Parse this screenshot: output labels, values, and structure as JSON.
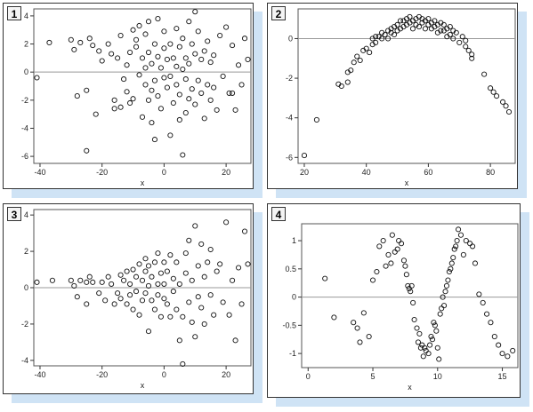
{
  "panels": [
    {
      "label": "1"
    },
    {
      "label": "2"
    },
    {
      "label": "3"
    },
    {
      "label": "4"
    }
  ],
  "chart_data": [
    {
      "type": "scatter",
      "panel": "1",
      "xlabel": "x",
      "ylabel": "",
      "xlim": [
        -42,
        28
      ],
      "ylim": [
        -6.5,
        4.5
      ],
      "xticks": [
        -40,
        -20,
        0,
        20
      ],
      "yticks": [
        -6,
        -4,
        -2,
        0,
        2,
        4
      ],
      "grid": false,
      "reference_line": 0,
      "points": [
        [
          -41,
          -0.4
        ],
        [
          -37,
          2.1
        ],
        [
          -30,
          2.3
        ],
        [
          -29,
          1.6
        ],
        [
          -28,
          -1.7
        ],
        [
          -27,
          2.1
        ],
        [
          -25,
          -5.6
        ],
        [
          -25,
          -1.3
        ],
        [
          -24,
          2.4
        ],
        [
          -23,
          1.9
        ],
        [
          -22,
          -3.0
        ],
        [
          -21,
          1.5
        ],
        [
          -20,
          0.8
        ],
        [
          -18,
          2.0
        ],
        [
          -17,
          1.3
        ],
        [
          -16,
          -2.0
        ],
        [
          -16,
          -2.6
        ],
        [
          -15,
          1.0
        ],
        [
          -14,
          -2.5
        ],
        [
          -14,
          2.6
        ],
        [
          -13,
          -0.5
        ],
        [
          -12,
          0.5
        ],
        [
          -12,
          -1.4
        ],
        [
          -11,
          -2.2
        ],
        [
          -11,
          1.4
        ],
        [
          -10,
          3.0
        ],
        [
          -10,
          -1.9
        ],
        [
          -9,
          2.3
        ],
        [
          -9,
          1.8
        ],
        [
          -8,
          3.3
        ],
        [
          -8,
          -0.2
        ],
        [
          -7,
          -3.2
        ],
        [
          -7,
          1.0
        ],
        [
          -6,
          2.7
        ],
        [
          -6,
          0.3
        ],
        [
          -6,
          -0.9
        ],
        [
          -5,
          3.6
        ],
        [
          -5,
          1.4
        ],
        [
          -5,
          -2.0
        ],
        [
          -4,
          -3.6
        ],
        [
          -4,
          0.6
        ],
        [
          -4,
          -1.3
        ],
        [
          -3,
          2.0
        ],
        [
          -3,
          -0.6
        ],
        [
          -3,
          -4.8
        ],
        [
          -2,
          1.1
        ],
        [
          -2,
          -1.7
        ],
        [
          -2,
          3.8
        ],
        [
          -1,
          0.3
        ],
        [
          -1,
          -2.6
        ],
        [
          0,
          1.7
        ],
        [
          0,
          -0.4
        ],
        [
          0,
          2.9
        ],
        [
          1,
          -1.1
        ],
        [
          1,
          0.9
        ],
        [
          2,
          -4.5
        ],
        [
          2,
          2.0
        ],
        [
          2,
          -0.3
        ],
        [
          3,
          1.0
        ],
        [
          3,
          -2.2
        ],
        [
          4,
          3.1
        ],
        [
          4,
          -0.9
        ],
        [
          4,
          0.4
        ],
        [
          5,
          -3.4
        ],
        [
          5,
          1.8
        ],
        [
          5,
          -1.6
        ],
        [
          6,
          0.2
        ],
        [
          6,
          -5.9
        ],
        [
          6,
          2.4
        ],
        [
          7,
          -2.9
        ],
        [
          7,
          1.0
        ],
        [
          7,
          -0.5
        ],
        [
          8,
          3.6
        ],
        [
          8,
          -1.9
        ],
        [
          8,
          0.6
        ],
        [
          9,
          -1.2
        ],
        [
          9,
          2.0
        ],
        [
          10,
          4.3
        ],
        [
          10,
          -2.3
        ],
        [
          10,
          1.3
        ],
        [
          11,
          -0.6
        ],
        [
          11,
          2.9
        ],
        [
          12,
          0.9
        ],
        [
          12,
          -1.5
        ],
        [
          13,
          1.5
        ],
        [
          13,
          -3.3
        ],
        [
          14,
          2.2
        ],
        [
          14,
          -0.9
        ],
        [
          15,
          -2.0
        ],
        [
          15,
          0.7
        ],
        [
          16,
          1.2
        ],
        [
          16,
          -1.1
        ],
        [
          17,
          -2.7
        ],
        [
          18,
          2.6
        ],
        [
          19,
          -0.3
        ],
        [
          20,
          3.2
        ],
        [
          21,
          -1.5
        ],
        [
          22,
          -1.5
        ],
        [
          22,
          1.9
        ],
        [
          23,
          -2.7
        ],
        [
          24,
          0.5
        ],
        [
          25,
          -0.9
        ],
        [
          26,
          2.4
        ],
        [
          27,
          0.9
        ]
      ]
    },
    {
      "type": "scatter",
      "panel": "2",
      "xlabel": "x",
      "ylabel": "",
      "xlim": [
        18,
        88
      ],
      "ylim": [
        -6.3,
        1.5
      ],
      "xticks": [
        20,
        40,
        60,
        80
      ],
      "yticks": [
        -6,
        -4,
        -2,
        0
      ],
      "grid": false,
      "reference_line": 0,
      "points": [
        [
          20,
          -5.9
        ],
        [
          24,
          -4.1
        ],
        [
          31,
          -2.3
        ],
        [
          32,
          -2.4
        ],
        [
          34,
          -2.2
        ],
        [
          34,
          -1.7
        ],
        [
          35,
          -1.6
        ],
        [
          36,
          -1.2
        ],
        [
          37,
          -0.9
        ],
        [
          38,
          -1.1
        ],
        [
          39,
          -0.6
        ],
        [
          40,
          -0.5
        ],
        [
          41,
          -0.7
        ],
        [
          42,
          -0.3
        ],
        [
          42,
          0.0
        ],
        [
          43,
          -0.2
        ],
        [
          43,
          0.1
        ],
        [
          44,
          0.1
        ],
        [
          45,
          0.0
        ],
        [
          45,
          0.3
        ],
        [
          46,
          0.2
        ],
        [
          47,
          0.4
        ],
        [
          47,
          0.0
        ],
        [
          48,
          0.5
        ],
        [
          48,
          0.3
        ],
        [
          49,
          0.6
        ],
        [
          49,
          0.2
        ],
        [
          50,
          0.7
        ],
        [
          50,
          0.4
        ],
        [
          51,
          0.9
        ],
        [
          51,
          0.5
        ],
        [
          52,
          0.9
        ],
        [
          52,
          0.6
        ],
        [
          53,
          1.0
        ],
        [
          53,
          0.7
        ],
        [
          54,
          1.1
        ],
        [
          54,
          0.8
        ],
        [
          55,
          0.9
        ],
        [
          55,
          0.5
        ],
        [
          56,
          1.0
        ],
        [
          56,
          0.7
        ],
        [
          57,
          1.1
        ],
        [
          57,
          0.6
        ],
        [
          58,
          1.0
        ],
        [
          58,
          0.8
        ],
        [
          59,
          0.9
        ],
        [
          59,
          0.5
        ],
        [
          60,
          1.0
        ],
        [
          60,
          0.7
        ],
        [
          61,
          0.8
        ],
        [
          61,
          0.5
        ],
        [
          62,
          0.9
        ],
        [
          62,
          0.6
        ],
        [
          63,
          0.7
        ],
        [
          63,
          0.3
        ],
        [
          64,
          0.8
        ],
        [
          64,
          0.4
        ],
        [
          65,
          0.7
        ],
        [
          65,
          0.4
        ],
        [
          66,
          0.5
        ],
        [
          66,
          0.1
        ],
        [
          67,
          0.6
        ],
        [
          67,
          0.2
        ],
        [
          68,
          0.4
        ],
        [
          68,
          0.0
        ],
        [
          69,
          0.3
        ],
        [
          70,
          -0.2
        ],
        [
          71,
          0.1
        ],
        [
          72,
          -0.4
        ],
        [
          72,
          -0.1
        ],
        [
          73,
          -0.6
        ],
        [
          74,
          -0.8
        ],
        [
          74,
          -1.0
        ],
        [
          78,
          -1.8
        ],
        [
          80,
          -2.5
        ],
        [
          81,
          -2.7
        ],
        [
          82,
          -2.9
        ],
        [
          84,
          -3.2
        ],
        [
          85,
          -3.4
        ],
        [
          86,
          -3.7
        ]
      ]
    },
    {
      "type": "scatter",
      "panel": "3",
      "xlabel": "x",
      "ylabel": "",
      "xlim": [
        -42,
        28
      ],
      "ylim": [
        -4.3,
        4.3
      ],
      "xticks": [
        -40,
        -20,
        0,
        20
      ],
      "yticks": [
        -4,
        -2,
        0,
        2,
        4
      ],
      "grid": false,
      "reference_line": 0,
      "points": [
        [
          -41,
          0.3
        ],
        [
          -36,
          0.4
        ],
        [
          -30,
          0.4
        ],
        [
          -29,
          0.1
        ],
        [
          -28,
          -0.5
        ],
        [
          -27,
          0.4
        ],
        [
          -25,
          0.3
        ],
        [
          -25,
          -0.9
        ],
        [
          -24,
          0.6
        ],
        [
          -23,
          0.3
        ],
        [
          -21,
          -0.3
        ],
        [
          -20,
          0.3
        ],
        [
          -19,
          -0.7
        ],
        [
          -18,
          0.6
        ],
        [
          -17,
          0.2
        ],
        [
          -16,
          -0.9
        ],
        [
          -15,
          -0.3
        ],
        [
          -14,
          0.7
        ],
        [
          -14,
          -0.6
        ],
        [
          -13,
          0.4
        ],
        [
          -12,
          -0.9
        ],
        [
          -12,
          0.9
        ],
        [
          -11,
          -0.4
        ],
        [
          -11,
          0.2
        ],
        [
          -10,
          1.0
        ],
        [
          -10,
          -1.2
        ],
        [
          -9,
          0.6
        ],
        [
          -9,
          -0.2
        ],
        [
          -8,
          1.3
        ],
        [
          -8,
          -1.5
        ],
        [
          -7,
          0.4
        ],
        [
          -7,
          -0.7
        ],
        [
          -6,
          1.6
        ],
        [
          -6,
          -0.3
        ],
        [
          -6,
          0.9
        ],
        [
          -5,
          -2.4
        ],
        [
          -5,
          0.1
        ],
        [
          -5,
          1.2
        ],
        [
          -4,
          -0.7
        ],
        [
          -4,
          0.6
        ],
        [
          -3,
          1.4
        ],
        [
          -3,
          -1.2
        ],
        [
          -2,
          0.2
        ],
        [
          -2,
          -0.4
        ],
        [
          -2,
          1.9
        ],
        [
          -1,
          -1.6
        ],
        [
          -1,
          0.8
        ],
        [
          0,
          -0.6
        ],
        [
          0,
          1.4
        ],
        [
          0,
          0.2
        ],
        [
          1,
          -0.9
        ],
        [
          1,
          0.9
        ],
        [
          2,
          -1.6
        ],
        [
          2,
          1.8
        ],
        [
          3,
          -0.2
        ],
        [
          3,
          0.5
        ],
        [
          4,
          -1.2
        ],
        [
          4,
          1.4
        ],
        [
          5,
          -2.9
        ],
        [
          5,
          0.2
        ],
        [
          6,
          -4.2
        ],
        [
          6,
          -1.6
        ],
        [
          7,
          0.8
        ],
        [
          7,
          1.9
        ],
        [
          8,
          -0.8
        ],
        [
          8,
          2.6
        ],
        [
          9,
          -1.9
        ],
        [
          9,
          0.4
        ],
        [
          10,
          -2.7
        ],
        [
          10,
          3.4
        ],
        [
          11,
          -0.5
        ],
        [
          11,
          1.2
        ],
        [
          12,
          -1.1
        ],
        [
          12,
          2.4
        ],
        [
          13,
          0.6
        ],
        [
          13,
          -2.0
        ],
        [
          14,
          1.4
        ],
        [
          15,
          -0.4
        ],
        [
          15,
          2.1
        ],
        [
          16,
          -1.5
        ],
        [
          17,
          0.9
        ],
        [
          18,
          1.3
        ],
        [
          19,
          -0.8
        ],
        [
          20,
          3.6
        ],
        [
          21,
          -1.5
        ],
        [
          22,
          0.4
        ],
        [
          23,
          -2.9
        ],
        [
          24,
          1.1
        ],
        [
          25,
          -0.9
        ],
        [
          26,
          3.1
        ],
        [
          27,
          1.3
        ]
      ]
    },
    {
      "type": "scatter",
      "panel": "4",
      "xlabel": "x",
      "ylabel": "",
      "xlim": [
        -0.5,
        16.2
      ],
      "ylim": [
        -1.25,
        1.3
      ],
      "xticks": [
        0,
        5,
        10,
        15
      ],
      "yticks": [
        -1.0,
        -0.5,
        0.0,
        0.5,
        1.0
      ],
      "grid": false,
      "reference_line": 0,
      "points": [
        [
          1.3,
          0.33
        ],
        [
          2.0,
          -0.36
        ],
        [
          3.5,
          -0.45
        ],
        [
          3.8,
          -0.55
        ],
        [
          4.0,
          -0.8
        ],
        [
          4.3,
          -0.28
        ],
        [
          4.7,
          -0.7
        ],
        [
          5.0,
          0.3
        ],
        [
          5.3,
          0.45
        ],
        [
          5.5,
          0.9
        ],
        [
          5.8,
          1.0
        ],
        [
          6.0,
          0.55
        ],
        [
          6.2,
          0.75
        ],
        [
          6.4,
          0.6
        ],
        [
          6.5,
          1.1
        ],
        [
          6.7,
          0.8
        ],
        [
          6.9,
          0.85
        ],
        [
          7.0,
          1.0
        ],
        [
          7.2,
          0.95
        ],
        [
          7.4,
          0.65
        ],
        [
          7.5,
          0.55
        ],
        [
          7.6,
          0.4
        ],
        [
          7.7,
          0.2
        ],
        [
          7.8,
          0.15
        ],
        [
          7.9,
          0.1
        ],
        [
          8.0,
          0.2
        ],
        [
          8.1,
          -0.1
        ],
        [
          8.2,
          -0.4
        ],
        [
          8.4,
          -0.55
        ],
        [
          8.5,
          -0.8
        ],
        [
          8.6,
          -0.65
        ],
        [
          8.7,
          -0.9
        ],
        [
          8.8,
          -0.85
        ],
        [
          8.9,
          -1.05
        ],
        [
          9.0,
          -0.9
        ],
        [
          9.1,
          -0.95
        ],
        [
          9.3,
          -1.0
        ],
        [
          9.4,
          -0.85
        ],
        [
          9.5,
          -0.7
        ],
        [
          9.6,
          -0.75
        ],
        [
          9.7,
          -0.45
        ],
        [
          9.8,
          -0.5
        ],
        [
          9.9,
          -0.6
        ],
        [
          10.0,
          -0.9
        ],
        [
          10.1,
          -1.1
        ],
        [
          10.2,
          -0.3
        ],
        [
          10.3,
          -0.2
        ],
        [
          10.4,
          0.0
        ],
        [
          10.5,
          -0.15
        ],
        [
          10.6,
          0.1
        ],
        [
          10.7,
          0.2
        ],
        [
          10.8,
          0.3
        ],
        [
          10.9,
          0.45
        ],
        [
          11.0,
          0.5
        ],
        [
          11.1,
          0.6
        ],
        [
          11.2,
          0.7
        ],
        [
          11.3,
          0.85
        ],
        [
          11.4,
          0.9
        ],
        [
          11.5,
          1.0
        ],
        [
          11.6,
          1.2
        ],
        [
          11.8,
          1.1
        ],
        [
          12.0,
          0.75
        ],
        [
          12.2,
          1.0
        ],
        [
          12.5,
          0.95
        ],
        [
          12.7,
          0.9
        ],
        [
          12.9,
          0.6
        ],
        [
          13.2,
          0.05
        ],
        [
          13.5,
          -0.1
        ],
        [
          13.8,
          -0.3
        ],
        [
          14.1,
          -0.45
        ],
        [
          14.4,
          -0.7
        ],
        [
          14.7,
          -0.85
        ],
        [
          15.0,
          -1.0
        ],
        [
          15.4,
          -1.05
        ],
        [
          15.8,
          -0.95
        ]
      ]
    }
  ]
}
